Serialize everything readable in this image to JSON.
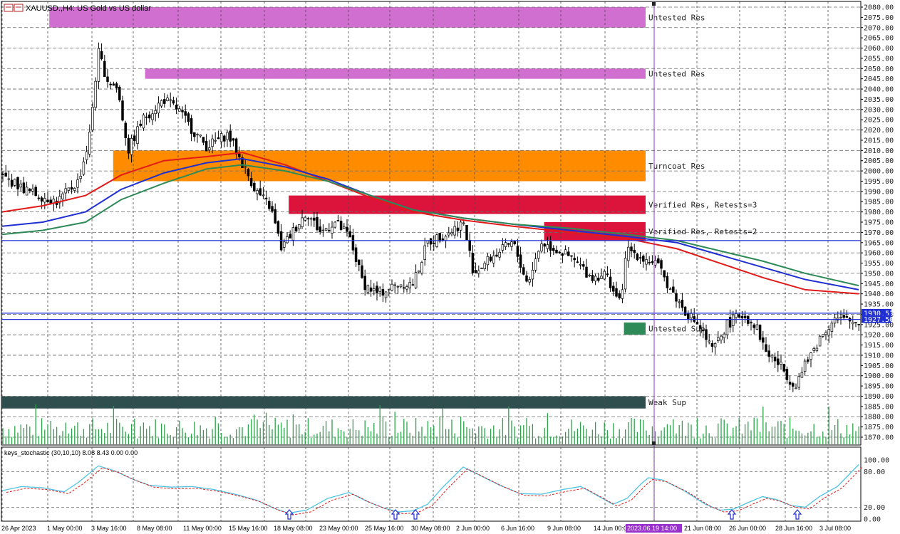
{
  "chart_title": "XAUUSD.,H4: US Gold vs US dollar",
  "indicator_title": "keys_stochastic (30,10,10) 8.08 8.43 0.00 0.00",
  "price_axis": {
    "min": 1870,
    "max": 2080,
    "step": 5,
    "labels": [
      "2080.00",
      "2075.00",
      "2070.00",
      "2065.00",
      "2060.00",
      "2055.00",
      "2050.00",
      "2045.00",
      "2040.00",
      "2035.00",
      "2030.00",
      "2025.00",
      "2020.00",
      "2015.00",
      "2010.00",
      "2005.00",
      "2000.00",
      "1995.00",
      "1990.00",
      "1985.00",
      "1980.00",
      "1975.00",
      "1970.00",
      "1965.00",
      "1960.00",
      "1955.00",
      "1950.00",
      "1945.00",
      "1940.00",
      "1935.00",
      "1930.00",
      "1925.00",
      "1920.00",
      "1915.00",
      "1910.00",
      "1905.00",
      "1900.00",
      "1895.00",
      "1890.00",
      "1885.00",
      "1880.00",
      "1875.00",
      "1870.00"
    ],
    "highlight_labels": [
      {
        "text": "1930.53",
        "price": 1930.53,
        "color": "#1f2fd1"
      },
      {
        "text": "1927.50",
        "price": 1927.5,
        "color": "#1f2fd1"
      }
    ]
  },
  "indicator_axis": {
    "labels": [
      "100.00",
      "80.00",
      "20.00",
      "0.00"
    ],
    "values": [
      100,
      80,
      20,
      0
    ]
  },
  "time_axis": {
    "labels": [
      "26 Apr 2023",
      "1 May 00:00",
      "3 May 16:00",
      "8 May 08:00",
      "11 May 00:00",
      "15 May 16:00",
      "18 May 08:00",
      "23 May 00:00",
      "25 May 16:00",
      "30 May 08:00",
      "2 Jun 00:00",
      "6 Jun 16:00",
      "9 Jun 08:00",
      "14 Jun 00:00",
      "2023.06.19 14:00",
      "21 Jun 08:00",
      "26 Jun 00:00",
      "28 Jun 16:00",
      "3 Jul 08:00"
    ],
    "highlight_index": 14
  },
  "zones": [
    {
      "label": "Untested Res",
      "top": 2080,
      "bottom": 2070,
      "start": 3,
      "color": "#d16fd1"
    },
    {
      "label": "Untested Res",
      "top": 2050,
      "bottom": 2045,
      "start": 9,
      "color": "#d16fd1"
    },
    {
      "label": "Turncoat Res",
      "top": 2010,
      "bottom": 1995,
      "start": 7,
      "color": "#ff8c00"
    },
    {
      "label": "Verified Res, Retests=3",
      "top": 1988,
      "bottom": 1979,
      "start": 18,
      "color": "#dc143c"
    },
    {
      "label": "Verified Res, Retests=2",
      "top": 1975,
      "bottom": 1966,
      "start": 34,
      "color": "#dc143c"
    },
    {
      "label": "Untested Sup",
      "top": 1926,
      "bottom": 1920,
      "start": 39,
      "color": "#2e8b57"
    },
    {
      "label": "Weak Sup",
      "top": 1890,
      "bottom": 1884,
      "start": 0,
      "color": "#2f4f4f"
    }
  ],
  "hlines": [
    {
      "price": 1966,
      "color": "#1f2fd1"
    },
    {
      "price": 1930.53,
      "color": "#1f2fd1"
    },
    {
      "price": 1927.5,
      "color": "#1f2fd1"
    }
  ],
  "colors": {
    "vline": "#9932cc",
    "ma_red": "#e31a1a",
    "ma_blue": "#1f2fd1",
    "ma_green": "#2e8b57",
    "stoch_main": "#4fc3e3",
    "stoch_signal": "#e31a1a",
    "volume": "#2ea24a",
    "arrow": "#1f2fd1"
  }
}
